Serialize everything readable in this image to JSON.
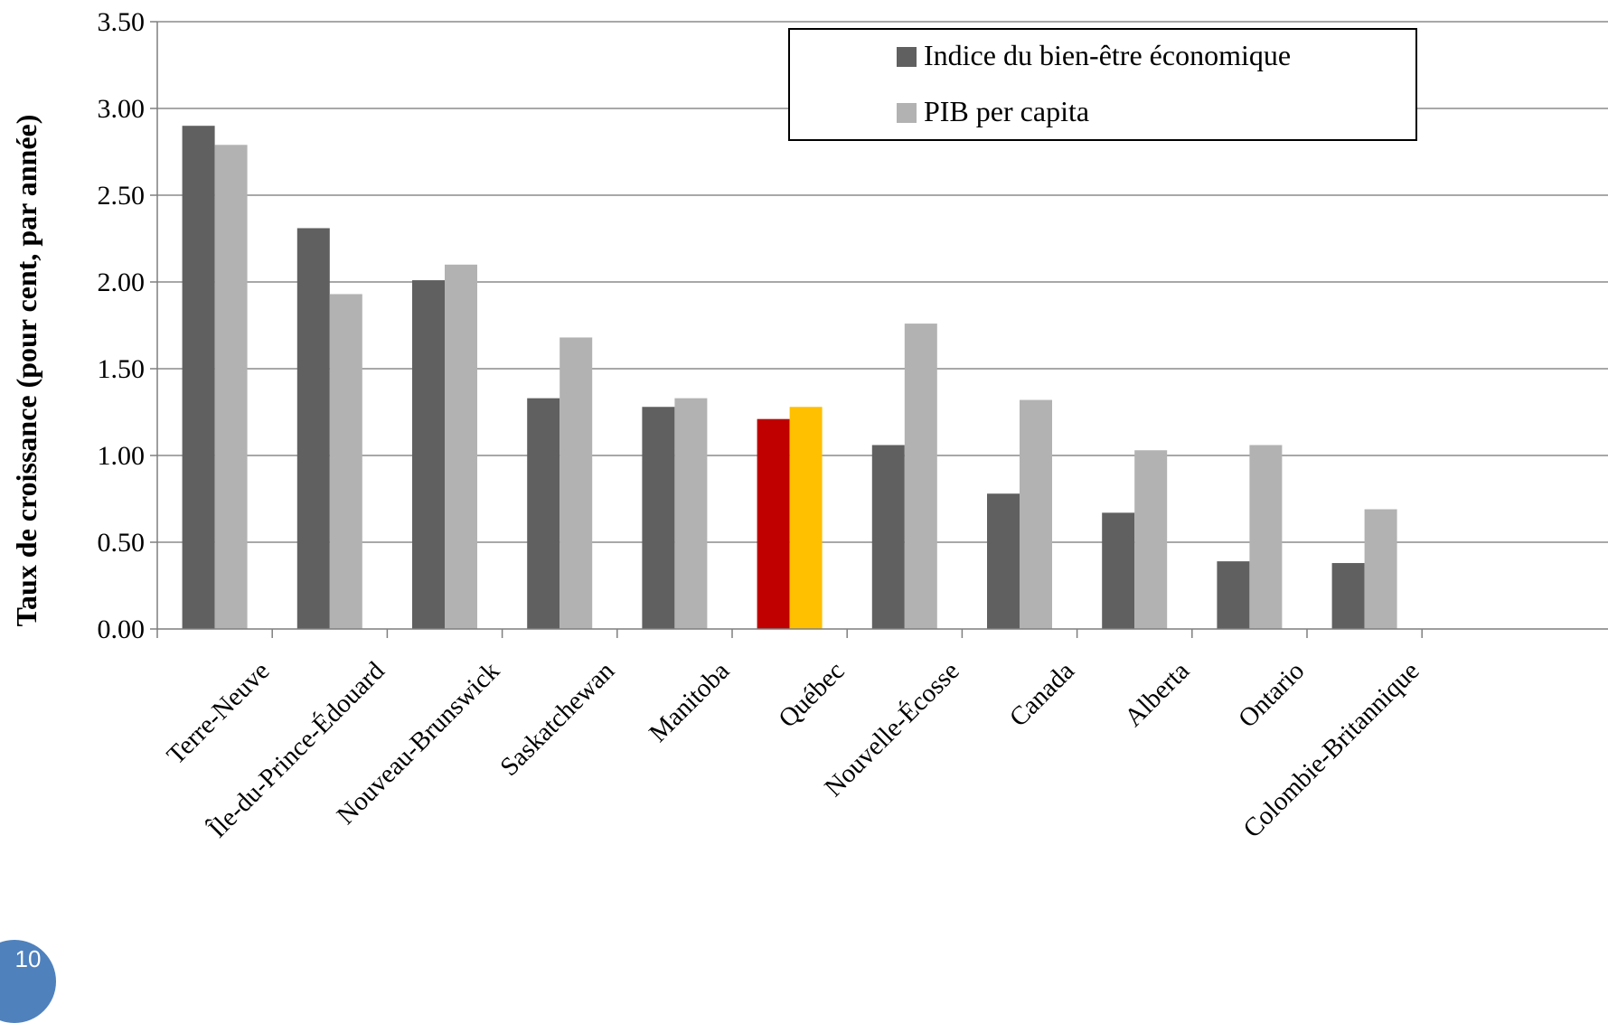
{
  "chart_data": {
    "type": "bar",
    "ylabel": "Taux de croissance (pour cent, par année)",
    "ylim": [
      0,
      3.5
    ],
    "yticks": [
      "0.00",
      "0.50",
      "1.00",
      "1.50",
      "2.00",
      "2.50",
      "3.00",
      "3.50"
    ],
    "grid": true,
    "legend_position": "top-right",
    "categories": [
      "Terre-Neuve",
      "Île-du-Prince-Édouard",
      "Nouveau-Brunswick",
      "Saskatchewan",
      "Manitoba",
      "Québec",
      "Nouvelle-Écosse",
      "Canada",
      "Alberta",
      "Ontario",
      "Colombie-Britannique"
    ],
    "series": [
      {
        "name": "Indice du bien-être économique",
        "color": "#606060",
        "values": [
          2.9,
          2.31,
          2.01,
          1.33,
          1.28,
          1.21,
          1.06,
          0.78,
          0.67,
          0.39,
          0.38
        ]
      },
      {
        "name": "PIB per capita",
        "color": "#b2b2b2",
        "values": [
          2.79,
          1.93,
          2.1,
          1.68,
          1.33,
          1.28,
          1.76,
          1.32,
          1.03,
          1.06,
          0.69
        ]
      }
    ],
    "highlight": {
      "category": "Québec",
      "colors": [
        "#c00000",
        "#ffc000"
      ]
    }
  },
  "page_number": "10"
}
